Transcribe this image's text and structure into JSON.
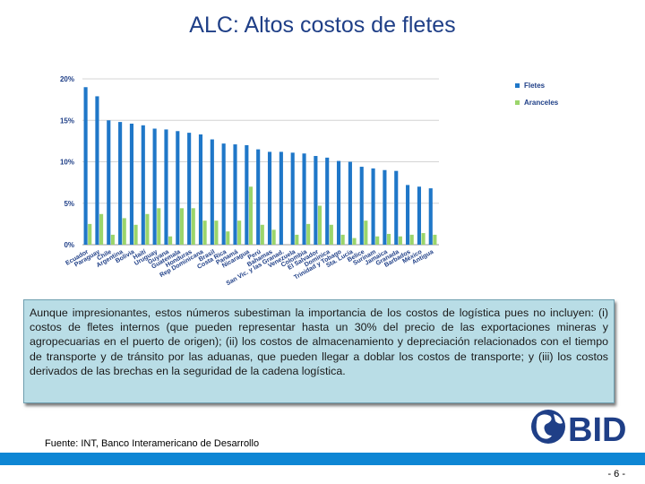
{
  "title": "ALC: Altos costos de fletes",
  "chart_data": {
    "type": "bar",
    "categories": [
      "Ecuador",
      "Paraguay",
      "Chile",
      "Argentina",
      "Bolivia",
      "Haití",
      "Uruguay",
      "Guyana",
      "Guatemala",
      "Honduras",
      "Rep Dominicana",
      "Brasil",
      "Costa Rica",
      "Panamá",
      "Nicaragua",
      "Perú",
      "Bahamas",
      "San Vic. y las Granad.",
      "Venezuela",
      "Colombia",
      "El Salvador",
      "Dominica",
      "Trinidad y Tobago",
      "Sta. Lucía",
      "Belice",
      "Surinam",
      "Jamaica",
      "Granada",
      "Barbados",
      "México",
      "Antigua"
    ],
    "series": [
      {
        "name": "Fletes",
        "color": "#1f77c8",
        "values": [
          19.0,
          17.9,
          15.0,
          14.8,
          14.6,
          14.4,
          14.0,
          13.9,
          13.7,
          13.5,
          13.3,
          12.7,
          12.2,
          12.1,
          12.0,
          11.5,
          11.2,
          11.2,
          11.1,
          11.0,
          10.7,
          10.5,
          10.1,
          10.0,
          9.4,
          9.2,
          9.0,
          8.9,
          7.2,
          7.0,
          6.8
        ]
      },
      {
        "name": "Aranceles",
        "color": "#9bd56b",
        "values": [
          2.5,
          3.7,
          1.2,
          3.2,
          2.4,
          3.7,
          4.4,
          1.0,
          4.4,
          4.4,
          2.9,
          2.9,
          1.6,
          2.9,
          7.0,
          2.4,
          1.8,
          0.0,
          1.2,
          2.5,
          4.7,
          2.4,
          1.2,
          0.8,
          2.9,
          1.0,
          1.3,
          1.0,
          1.2,
          1.4,
          1.2
        ]
      }
    ],
    "ylim": [
      0,
      20
    ],
    "yticks": [
      "0%",
      "5%",
      "10%",
      "15%",
      "20%"
    ],
    "ytick_values": [
      0,
      5,
      10,
      15,
      20
    ],
    "grid": true,
    "legend": "top-right"
  },
  "note": "Aunque impresionantes, estos números subestiman la importancia de los costos de logística pues no incluyen: (i) costos de fletes internos (que pueden representar hasta un 30% del precio de las exportaciones mineras y agropecuarias en el puerto de origen); (ii) los costos de almacenamiento y depreciación relacionados con el tiempo de transporte y de tránsito por las aduanas, que pueden llegar a doblar los costos de transporte; y (iii) los costos derivados de las brechas en la seguridad de la cadena logística.",
  "source": "Fuente: INT, Banco Interamericano de Desarrollo",
  "logo_text": "BID",
  "page_number": "- 6 -"
}
